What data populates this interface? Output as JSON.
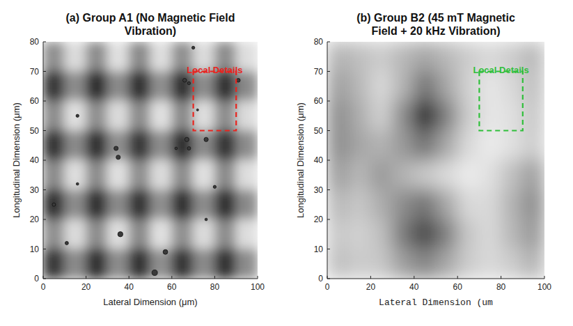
{
  "chart_data": [
    {
      "type": "heatmap",
      "title": "(a) Group A1 (No Magnetic Field Vibration)",
      "xlabel": "Lateral Dimension (μm)",
      "ylabel": "Longitudinal Dimension (μm)",
      "xlim": [
        0,
        100
      ],
      "ylim": [
        0,
        80
      ],
      "xticks": [
        0,
        20,
        40,
        60,
        80,
        100
      ],
      "yticks": [
        0,
        10,
        20,
        30,
        40,
        50,
        60,
        70,
        80
      ],
      "grid": false,
      "x": [
        5,
        15,
        25,
        35,
        45,
        55,
        65,
        75,
        85,
        95
      ],
      "y": [
        75,
        65,
        55,
        45,
        35,
        25,
        15,
        5
      ],
      "zlim": [
        0,
        1
      ],
      "cells": [
        [
          0.56,
          0.86,
          0.55,
          0.88,
          0.54,
          0.87,
          0.56,
          0.86,
          0.55,
          0.87
        ],
        [
          0.22,
          0.55,
          0.18,
          0.54,
          0.2,
          0.56,
          0.19,
          0.55,
          0.2,
          0.54
        ],
        [
          0.55,
          0.88,
          0.56,
          0.86,
          0.55,
          0.88,
          0.54,
          0.87,
          0.55,
          0.86
        ],
        [
          0.21,
          0.54,
          0.2,
          0.56,
          0.22,
          0.55,
          0.18,
          0.54,
          0.21,
          0.55
        ],
        [
          0.54,
          0.87,
          0.55,
          0.88,
          0.56,
          0.86,
          0.55,
          0.88,
          0.54,
          0.87
        ],
        [
          0.2,
          0.55,
          0.19,
          0.54,
          0.21,
          0.56,
          0.2,
          0.55,
          0.19,
          0.54
        ],
        [
          0.56,
          0.86,
          0.55,
          0.87,
          0.54,
          0.88,
          0.56,
          0.86,
          0.55,
          0.87
        ],
        [
          0.22,
          0.54,
          0.2,
          0.55,
          0.19,
          0.56,
          0.21,
          0.54,
          0.2,
          0.55
        ]
      ],
      "particles": {
        "x": [
          5,
          11,
          16,
          16,
          34,
          35,
          36,
          52,
          57,
          62,
          67,
          68,
          70,
          66,
          68,
          72,
          76,
          76,
          80,
          91
        ],
        "y": [
          25,
          12,
          32,
          55,
          44,
          41,
          15,
          2,
          9,
          44,
          47,
          44,
          78,
          67,
          66,
          57,
          47,
          20,
          31,
          67
        ],
        "size": [
          0.8,
          0.8,
          0.6,
          0.7,
          1.0,
          1.0,
          1.2,
          1.3,
          1.1,
          0.6,
          1.0,
          0.8,
          0.7,
          0.9,
          0.7,
          0.5,
          1.0,
          0.6,
          0.7,
          0.9
        ]
      },
      "annotation": {
        "text": "Local Details",
        "x": [
          70,
          90
        ],
        "y": [
          50,
          70
        ],
        "color": "#e8251f"
      }
    },
    {
      "type": "heatmap",
      "title": "(b) Group B2 (45 mT Magnetic Field + 20 kHz Vibration)",
      "xlabel": "Lateral Dimension (um",
      "ylabel": "Longitudinal Dimension (μm)",
      "xlim": [
        0,
        100
      ],
      "ylim": [
        0,
        80
      ],
      "xticks": [
        0,
        20,
        40,
        60,
        80,
        100
      ],
      "yticks": [
        0,
        10,
        20,
        30,
        40,
        50,
        60,
        70,
        80
      ],
      "grid": false,
      "x": [
        5,
        15,
        25,
        35,
        45,
        55,
        65,
        75,
        85,
        95
      ],
      "y": [
        75,
        65,
        55,
        45,
        35,
        25,
        15,
        5
      ],
      "zlim": [
        0,
        1
      ],
      "cells": [
        [
          0.7,
          0.75,
          0.8,
          0.72,
          0.65,
          0.72,
          0.8,
          0.85,
          0.8,
          0.72
        ],
        [
          0.62,
          0.72,
          0.85,
          0.7,
          0.45,
          0.65,
          0.82,
          0.9,
          0.85,
          0.75
        ],
        [
          0.55,
          0.68,
          0.82,
          0.55,
          0.15,
          0.5,
          0.8,
          0.9,
          0.88,
          0.78
        ],
        [
          0.55,
          0.65,
          0.7,
          0.6,
          0.45,
          0.65,
          0.85,
          0.92,
          0.88,
          0.8
        ],
        [
          0.62,
          0.72,
          0.6,
          0.7,
          0.78,
          0.85,
          0.92,
          0.88,
          0.75,
          0.62
        ],
        [
          0.72,
          0.78,
          0.68,
          0.55,
          0.45,
          0.65,
          0.85,
          0.85,
          0.7,
          0.55
        ],
        [
          0.78,
          0.82,
          0.75,
          0.48,
          0.28,
          0.5,
          0.78,
          0.85,
          0.72,
          0.6
        ],
        [
          0.75,
          0.8,
          0.78,
          0.62,
          0.52,
          0.65,
          0.8,
          0.85,
          0.8,
          0.7
        ]
      ],
      "annotation": {
        "text": "Local Details",
        "x": [
          70,
          90
        ],
        "y": [
          50,
          70
        ],
        "color": "#2fbf3a"
      }
    }
  ]
}
